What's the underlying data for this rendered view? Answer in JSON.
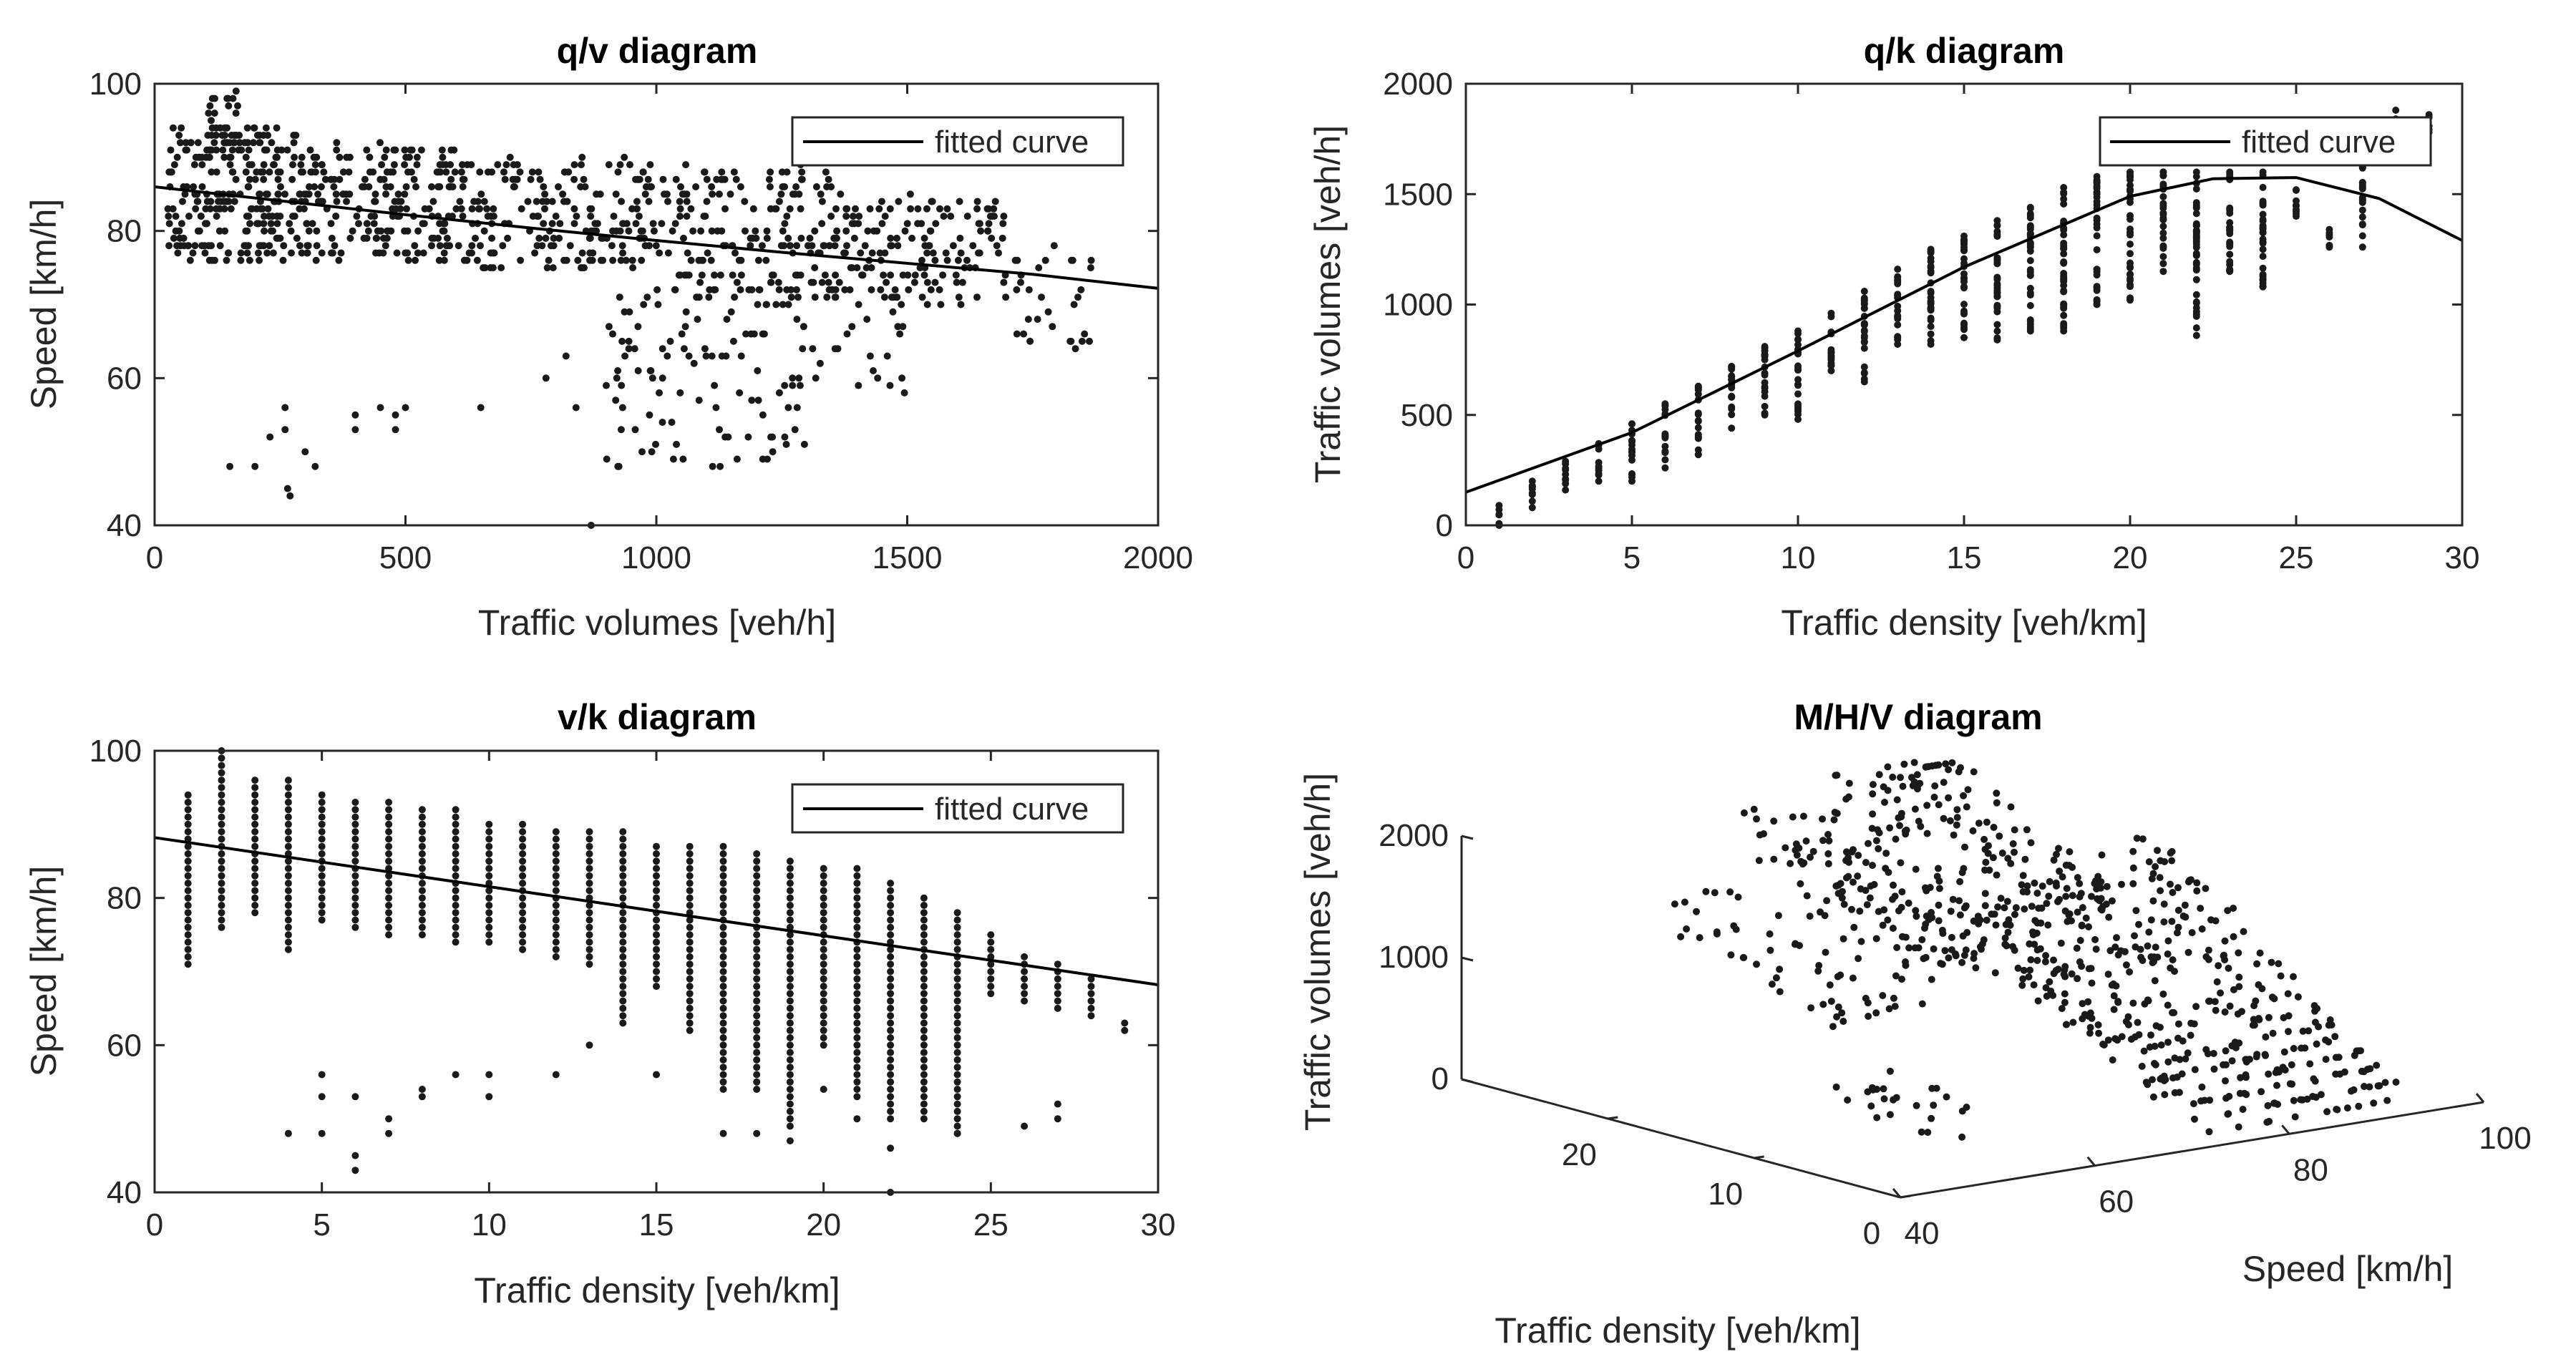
{
  "chart_data": [
    {
      "id": "qv",
      "type": "scatter",
      "title": "q/v diagram",
      "xlabel": "Traffic volumes [veh/h]",
      "ylabel": "Speed [km/h]",
      "xlim": [
        0,
        2000
      ],
      "ylim": [
        40,
        100
      ],
      "xticks": [
        0,
        500,
        1000,
        1500,
        2000
      ],
      "xtick_labels": [
        "0",
        "500",
        "1000",
        "1500",
        "2000"
      ],
      "yticks": [
        40,
        60,
        80,
        100
      ],
      "ytick_labels": [
        "40",
        "60",
        "80",
        "100"
      ],
      "legend": {
        "label": "fitted curve",
        "position": "top-right"
      },
      "fitted_curve": {
        "x": [
          0,
          250,
          500,
          750,
          1000,
          1250,
          1500,
          1750,
          2000
        ],
        "y": [
          86,
          84.1,
          82.2,
          80.4,
          78.7,
          77.1,
          75.6,
          74.1,
          72.2
        ]
      },
      "bands": [
        {
          "x0": 25,
          "x1": 300,
          "ymin": 76,
          "ymax": 94,
          "n": 260
        },
        {
          "x0": 100,
          "x1": 170,
          "ymin": 90,
          "ymax": 99,
          "n": 30
        },
        {
          "x0": 300,
          "x1": 600,
          "ymin": 76,
          "ymax": 92,
          "n": 200
        },
        {
          "x0": 600,
          "x1": 1000,
          "ymin": 75,
          "ymax": 90,
          "n": 200
        },
        {
          "x0": 1000,
          "x1": 1350,
          "ymin": 72,
          "ymax": 89,
          "n": 160
        },
        {
          "x0": 1350,
          "x1": 1700,
          "ymin": 70,
          "ymax": 85,
          "n": 150
        },
        {
          "x0": 1700,
          "x1": 1870,
          "ymin": 64,
          "ymax": 78,
          "n": 30
        },
        {
          "x0": 900,
          "x1": 1300,
          "ymin": 48,
          "ymax": 72,
          "n": 110
        },
        {
          "x0": 1250,
          "x1": 1500,
          "ymin": 58,
          "ymax": 74,
          "n": 40
        }
      ],
      "points": [
        [
          150,
          48
        ],
        [
          200,
          48
        ],
        [
          230,
          52
        ],
        [
          260,
          56
        ],
        [
          260,
          53
        ],
        [
          265,
          45
        ],
        [
          270,
          44
        ],
        [
          300,
          50
        ],
        [
          320,
          48
        ],
        [
          400,
          53
        ],
        [
          400,
          55
        ],
        [
          450,
          56
        ],
        [
          480,
          55
        ],
        [
          480,
          53
        ],
        [
          500,
          56
        ],
        [
          650,
          56
        ],
        [
          780,
          60
        ],
        [
          820,
          63
        ],
        [
          840,
          56
        ],
        [
          870,
          40
        ]
      ]
    },
    {
      "id": "qk",
      "type": "scatter",
      "title": "q/k diagram",
      "xlabel": "Traffic density [veh/km]",
      "ylabel": "Traffic volumes [veh/h]",
      "xlim": [
        0,
        30
      ],
      "ylim": [
        0,
        2000
      ],
      "xticks": [
        0,
        5,
        10,
        15,
        20,
        25,
        30
      ],
      "xtick_labels": [
        "0",
        "5",
        "10",
        "15",
        "20",
        "25",
        "30"
      ],
      "yticks": [
        0,
        500,
        1000,
        1500,
        2000
      ],
      "ytick_labels": [
        "0",
        "500",
        "1000",
        "1500",
        "2000"
      ],
      "legend": {
        "label": "fitted curve",
        "position": "top-right"
      },
      "fitted_curve": {
        "x": [
          0,
          5,
          10,
          15,
          20,
          22.5,
          25,
          27.5,
          30
        ],
        "y": [
          150,
          420,
          790,
          1170,
          1490,
          1570,
          1575,
          1480,
          1290
        ]
      },
      "columns": [
        {
          "k": 1,
          "lo": 0,
          "hi": 90
        },
        {
          "k": 2,
          "lo": 80,
          "hi": 200
        },
        {
          "k": 3,
          "lo": 160,
          "hi": 290
        },
        {
          "k": 4,
          "lo": 200,
          "hi": 370
        },
        {
          "k": 5,
          "lo": 200,
          "hi": 460
        },
        {
          "k": 6,
          "lo": 260,
          "hi": 550
        },
        {
          "k": 7,
          "lo": 320,
          "hi": 630
        },
        {
          "k": 8,
          "lo": 440,
          "hi": 720
        },
        {
          "k": 9,
          "lo": 500,
          "hi": 810
        },
        {
          "k": 10,
          "lo": 480,
          "hi": 880
        },
        {
          "k": 11,
          "lo": 700,
          "hi": 960
        },
        {
          "k": 12,
          "lo": 650,
          "hi": 1060
        },
        {
          "k": 13,
          "lo": 820,
          "hi": 1160
        },
        {
          "k": 14,
          "lo": 820,
          "hi": 1250
        },
        {
          "k": 15,
          "lo": 850,
          "hi": 1310
        },
        {
          "k": 16,
          "lo": 840,
          "hi": 1380
        },
        {
          "k": 17,
          "lo": 880,
          "hi": 1440
        },
        {
          "k": 18,
          "lo": 880,
          "hi": 1530
        },
        {
          "k": 19,
          "lo": 1000,
          "hi": 1580
        },
        {
          "k": 20,
          "lo": 1020,
          "hi": 1600
        },
        {
          "k": 21,
          "lo": 1150,
          "hi": 1600
        },
        {
          "k": 22,
          "lo": 860,
          "hi": 1600
        },
        {
          "k": 23,
          "lo": 1150,
          "hi": 1600
        },
        {
          "k": 24,
          "lo": 1080,
          "hi": 1600
        },
        {
          "k": 25,
          "lo": 1400,
          "hi": 1520
        },
        {
          "k": 26,
          "lo": 1260,
          "hi": 1340
        },
        {
          "k": 27,
          "lo": 1260,
          "hi": 1820
        },
        {
          "k": 28,
          "lo": 1700,
          "hi": 1880
        },
        {
          "k": 29,
          "lo": 1780,
          "hi": 1860
        }
      ]
    },
    {
      "id": "vk",
      "type": "scatter",
      "title": "v/k diagram",
      "xlabel": "Traffic density [veh/km]",
      "ylabel": "Speed [km/h]",
      "xlim": [
        0,
        30
      ],
      "ylim": [
        40,
        100
      ],
      "xticks": [
        0,
        5,
        10,
        15,
        20,
        25,
        30
      ],
      "xtick_labels": [
        "0",
        "5",
        "10",
        "15",
        "20",
        "25",
        "30"
      ],
      "yticks": [
        40,
        60,
        80,
        100
      ],
      "ytick_labels": [
        "40",
        "60",
        "80",
        "100"
      ],
      "legend": {
        "label": "fitted curve",
        "position": "top-right"
      },
      "fitted_curve": {
        "x": [
          0,
          30
        ],
        "y": [
          88.2,
          68.2
        ]
      },
      "columns": [
        {
          "k": 1,
          "lo": 71,
          "hi": 94
        },
        {
          "k": 2,
          "lo": 76,
          "hi": 100
        },
        {
          "k": 3,
          "lo": 78,
          "hi": 96
        },
        {
          "k": 4,
          "lo": 73,
          "hi": 96
        },
        {
          "k": 5,
          "lo": 77,
          "hi": 94
        },
        {
          "k": 6,
          "lo": 76,
          "hi": 93
        },
        {
          "k": 7,
          "lo": 75,
          "hi": 93
        },
        {
          "k": 8,
          "lo": 75,
          "hi": 92
        },
        {
          "k": 9,
          "lo": 74,
          "hi": 92
        },
        {
          "k": 10,
          "lo": 74,
          "hi": 90
        },
        {
          "k": 11,
          "lo": 73,
          "hi": 90
        },
        {
          "k": 12,
          "lo": 72,
          "hi": 89
        },
        {
          "k": 13,
          "lo": 71,
          "hi": 89
        },
        {
          "k": 14,
          "lo": 63,
          "hi": 89
        },
        {
          "k": 15,
          "lo": 68,
          "hi": 87
        },
        {
          "k": 16,
          "lo": 62,
          "hi": 87
        },
        {
          "k": 17,
          "lo": 54,
          "hi": 87
        },
        {
          "k": 18,
          "lo": 54,
          "hi": 86
        },
        {
          "k": 19,
          "lo": 49,
          "hi": 85
        },
        {
          "k": 20,
          "lo": 60,
          "hi": 84
        },
        {
          "k": 21,
          "lo": 53,
          "hi": 84
        },
        {
          "k": 22,
          "lo": 50,
          "hi": 82
        },
        {
          "k": 23,
          "lo": 50,
          "hi": 80
        },
        {
          "k": 24,
          "lo": 48,
          "hi": 78
        },
        {
          "k": 25,
          "lo": 67,
          "hi": 75
        },
        {
          "k": 26,
          "lo": 66,
          "hi": 72
        },
        {
          "k": 27,
          "lo": 65,
          "hi": 71
        },
        {
          "k": 28,
          "lo": 64,
          "hi": 69
        },
        {
          "k": 29,
          "lo": 62,
          "hi": 63
        }
      ],
      "points": [
        [
          4,
          48
        ],
        [
          5,
          48
        ],
        [
          5,
          53
        ],
        [
          5,
          56
        ],
        [
          6,
          43
        ],
        [
          6,
          45
        ],
        [
          6,
          53
        ],
        [
          7,
          48
        ],
        [
          7,
          50
        ],
        [
          8,
          53
        ],
        [
          8,
          54
        ],
        [
          9,
          56
        ],
        [
          10,
          53
        ],
        [
          10,
          56
        ],
        [
          12,
          56
        ],
        [
          13,
          60
        ],
        [
          15,
          56
        ],
        [
          17,
          48
        ],
        [
          18,
          48
        ],
        [
          19,
          47
        ],
        [
          20,
          54
        ],
        [
          21,
          50
        ],
        [
          22,
          40
        ],
        [
          22,
          46
        ],
        [
          24,
          48
        ],
        [
          26,
          49
        ],
        [
          27,
          50
        ],
        [
          27,
          52
        ]
      ]
    },
    {
      "id": "mhv",
      "type": "scatter3d",
      "title": "M/H/V diagram",
      "xlabel": "Speed [km/h]",
      "ylabel": "Traffic density [veh/km]",
      "zlabel": "Traffic volumes [veh/h]",
      "xlim": [
        40,
        100
      ],
      "ylim": [
        0,
        30
      ],
      "zlim": [
        0,
        2000
      ],
      "xticks": [
        40,
        60,
        80,
        100
      ],
      "xtick_labels": [
        "40",
        "60",
        "80",
        "100"
      ],
      "yticks": [
        0,
        10,
        20
      ],
      "ytick_labels": [
        "0",
        "10",
        "20"
      ],
      "zticks": [
        0,
        1000,
        2000
      ],
      "ztick_labels": [
        "0",
        "1000",
        "2000"
      ],
      "clusters": [
        {
          "vmin": 48,
          "vmax": 56,
          "kmin": 4,
          "kmax": 10,
          "n": 25
        },
        {
          "vmin": 53,
          "vmax": 72,
          "kmin": 14,
          "kmax": 26,
          "n": 110
        },
        {
          "vmin": 72,
          "vmax": 94,
          "kmin": 1,
          "kmax": 18,
          "n": 420
        },
        {
          "vmin": 66,
          "vmax": 86,
          "kmin": 16,
          "kmax": 28,
          "n": 240
        }
      ]
    }
  ],
  "colors": {
    "marker": "#1a1a1a",
    "axes": "#262626",
    "line": "#000000",
    "background": "#ffffff"
  }
}
